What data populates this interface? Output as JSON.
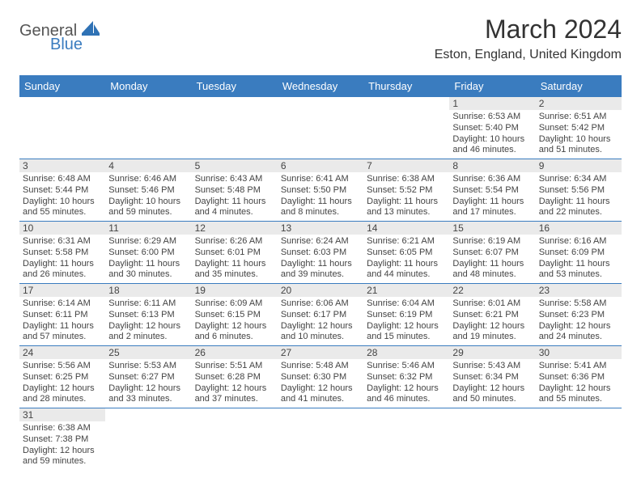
{
  "logo": {
    "general": "General",
    "blue": "Blue"
  },
  "title": "March 2024",
  "location": "Eston, England, United Kingdom",
  "colors": {
    "header_bg": "#3a7cbf",
    "header_text": "#ffffff",
    "daynum_bg": "#eaeaea",
    "border": "#3a7cbf",
    "text": "#444444",
    "title_text": "#333333"
  },
  "typography": {
    "title_fontsize": 32,
    "location_fontsize": 16,
    "header_fontsize": 13,
    "cell_fontsize": 11
  },
  "dayHeaders": [
    "Sunday",
    "Monday",
    "Tuesday",
    "Wednesday",
    "Thursday",
    "Friday",
    "Saturday"
  ],
  "weeks": [
    [
      null,
      null,
      null,
      null,
      null,
      {
        "n": "1",
        "sunrise": "Sunrise: 6:53 AM",
        "sunset": "Sunset: 5:40 PM",
        "day1": "Daylight: 10 hours",
        "day2": "and 46 minutes."
      },
      {
        "n": "2",
        "sunrise": "Sunrise: 6:51 AM",
        "sunset": "Sunset: 5:42 PM",
        "day1": "Daylight: 10 hours",
        "day2": "and 51 minutes."
      }
    ],
    [
      {
        "n": "3",
        "sunrise": "Sunrise: 6:48 AM",
        "sunset": "Sunset: 5:44 PM",
        "day1": "Daylight: 10 hours",
        "day2": "and 55 minutes."
      },
      {
        "n": "4",
        "sunrise": "Sunrise: 6:46 AM",
        "sunset": "Sunset: 5:46 PM",
        "day1": "Daylight: 10 hours",
        "day2": "and 59 minutes."
      },
      {
        "n": "5",
        "sunrise": "Sunrise: 6:43 AM",
        "sunset": "Sunset: 5:48 PM",
        "day1": "Daylight: 11 hours",
        "day2": "and 4 minutes."
      },
      {
        "n": "6",
        "sunrise": "Sunrise: 6:41 AM",
        "sunset": "Sunset: 5:50 PM",
        "day1": "Daylight: 11 hours",
        "day2": "and 8 minutes."
      },
      {
        "n": "7",
        "sunrise": "Sunrise: 6:38 AM",
        "sunset": "Sunset: 5:52 PM",
        "day1": "Daylight: 11 hours",
        "day2": "and 13 minutes."
      },
      {
        "n": "8",
        "sunrise": "Sunrise: 6:36 AM",
        "sunset": "Sunset: 5:54 PM",
        "day1": "Daylight: 11 hours",
        "day2": "and 17 minutes."
      },
      {
        "n": "9",
        "sunrise": "Sunrise: 6:34 AM",
        "sunset": "Sunset: 5:56 PM",
        "day1": "Daylight: 11 hours",
        "day2": "and 22 minutes."
      }
    ],
    [
      {
        "n": "10",
        "sunrise": "Sunrise: 6:31 AM",
        "sunset": "Sunset: 5:58 PM",
        "day1": "Daylight: 11 hours",
        "day2": "and 26 minutes."
      },
      {
        "n": "11",
        "sunrise": "Sunrise: 6:29 AM",
        "sunset": "Sunset: 6:00 PM",
        "day1": "Daylight: 11 hours",
        "day2": "and 30 minutes."
      },
      {
        "n": "12",
        "sunrise": "Sunrise: 6:26 AM",
        "sunset": "Sunset: 6:01 PM",
        "day1": "Daylight: 11 hours",
        "day2": "and 35 minutes."
      },
      {
        "n": "13",
        "sunrise": "Sunrise: 6:24 AM",
        "sunset": "Sunset: 6:03 PM",
        "day1": "Daylight: 11 hours",
        "day2": "and 39 minutes."
      },
      {
        "n": "14",
        "sunrise": "Sunrise: 6:21 AM",
        "sunset": "Sunset: 6:05 PM",
        "day1": "Daylight: 11 hours",
        "day2": "and 44 minutes."
      },
      {
        "n": "15",
        "sunrise": "Sunrise: 6:19 AM",
        "sunset": "Sunset: 6:07 PM",
        "day1": "Daylight: 11 hours",
        "day2": "and 48 minutes."
      },
      {
        "n": "16",
        "sunrise": "Sunrise: 6:16 AM",
        "sunset": "Sunset: 6:09 PM",
        "day1": "Daylight: 11 hours",
        "day2": "and 53 minutes."
      }
    ],
    [
      {
        "n": "17",
        "sunrise": "Sunrise: 6:14 AM",
        "sunset": "Sunset: 6:11 PM",
        "day1": "Daylight: 11 hours",
        "day2": "and 57 minutes."
      },
      {
        "n": "18",
        "sunrise": "Sunrise: 6:11 AM",
        "sunset": "Sunset: 6:13 PM",
        "day1": "Daylight: 12 hours",
        "day2": "and 2 minutes."
      },
      {
        "n": "19",
        "sunrise": "Sunrise: 6:09 AM",
        "sunset": "Sunset: 6:15 PM",
        "day1": "Daylight: 12 hours",
        "day2": "and 6 minutes."
      },
      {
        "n": "20",
        "sunrise": "Sunrise: 6:06 AM",
        "sunset": "Sunset: 6:17 PM",
        "day1": "Daylight: 12 hours",
        "day2": "and 10 minutes."
      },
      {
        "n": "21",
        "sunrise": "Sunrise: 6:04 AM",
        "sunset": "Sunset: 6:19 PM",
        "day1": "Daylight: 12 hours",
        "day2": "and 15 minutes."
      },
      {
        "n": "22",
        "sunrise": "Sunrise: 6:01 AM",
        "sunset": "Sunset: 6:21 PM",
        "day1": "Daylight: 12 hours",
        "day2": "and 19 minutes."
      },
      {
        "n": "23",
        "sunrise": "Sunrise: 5:58 AM",
        "sunset": "Sunset: 6:23 PM",
        "day1": "Daylight: 12 hours",
        "day2": "and 24 minutes."
      }
    ],
    [
      {
        "n": "24",
        "sunrise": "Sunrise: 5:56 AM",
        "sunset": "Sunset: 6:25 PM",
        "day1": "Daylight: 12 hours",
        "day2": "and 28 minutes."
      },
      {
        "n": "25",
        "sunrise": "Sunrise: 5:53 AM",
        "sunset": "Sunset: 6:27 PM",
        "day1": "Daylight: 12 hours",
        "day2": "and 33 minutes."
      },
      {
        "n": "26",
        "sunrise": "Sunrise: 5:51 AM",
        "sunset": "Sunset: 6:28 PM",
        "day1": "Daylight: 12 hours",
        "day2": "and 37 minutes."
      },
      {
        "n": "27",
        "sunrise": "Sunrise: 5:48 AM",
        "sunset": "Sunset: 6:30 PM",
        "day1": "Daylight: 12 hours",
        "day2": "and 41 minutes."
      },
      {
        "n": "28",
        "sunrise": "Sunrise: 5:46 AM",
        "sunset": "Sunset: 6:32 PM",
        "day1": "Daylight: 12 hours",
        "day2": "and 46 minutes."
      },
      {
        "n": "29",
        "sunrise": "Sunrise: 5:43 AM",
        "sunset": "Sunset: 6:34 PM",
        "day1": "Daylight: 12 hours",
        "day2": "and 50 minutes."
      },
      {
        "n": "30",
        "sunrise": "Sunrise: 5:41 AM",
        "sunset": "Sunset: 6:36 PM",
        "day1": "Daylight: 12 hours",
        "day2": "and 55 minutes."
      }
    ],
    [
      {
        "n": "31",
        "sunrise": "Sunrise: 6:38 AM",
        "sunset": "Sunset: 7:38 PM",
        "day1": "Daylight: 12 hours",
        "day2": "and 59 minutes."
      },
      null,
      null,
      null,
      null,
      null,
      null
    ]
  ]
}
